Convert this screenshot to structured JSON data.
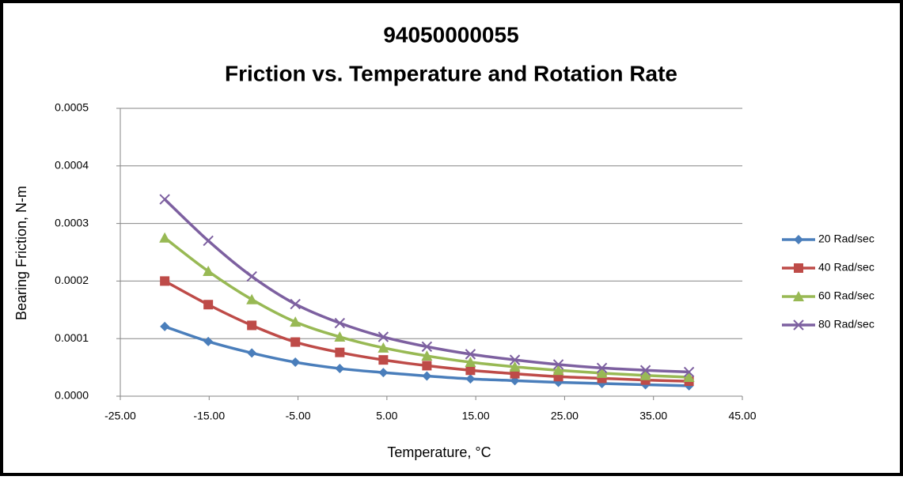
{
  "chart_data": {
    "type": "line",
    "title": "94050000055",
    "subtitle": "Friction vs. Temperature and Rotation Rate",
    "xlabel": "Temperature, °C",
    "ylabel": "Bearing Friction, N-m",
    "x": [
      -20,
      -15.1,
      -10.2,
      -5.3,
      -0.3,
      4.6,
      9.5,
      14.4,
      19.4,
      24.3,
      29.2,
      34.1,
      39.0
    ],
    "series": [
      {
        "name": "20 Rad/sec",
        "color": "#4a7ebb",
        "marker": "diamond",
        "values": [
          0.000121,
          9.5e-05,
          7.5e-05,
          5.9e-05,
          4.8e-05,
          4.1e-05,
          3.5e-05,
          3e-05,
          2.7e-05,
          2.4e-05,
          2.2e-05,
          2e-05,
          1.8e-05
        ]
      },
      {
        "name": "40 Rad/sec",
        "color": "#be4b48",
        "marker": "square",
        "values": [
          0.0002,
          0.000159,
          0.000123,
          9.4e-05,
          7.6e-05,
          6.3e-05,
          5.3e-05,
          4.5e-05,
          3.9e-05,
          3.4e-05,
          3.1e-05,
          2.8e-05,
          2.6e-05
        ]
      },
      {
        "name": "60 Rad/sec",
        "color": "#98b954",
        "marker": "triangle",
        "values": [
          0.000275,
          0.000217,
          0.000168,
          0.000129,
          0.000103,
          8.4e-05,
          7e-05,
          5.9e-05,
          5.1e-05,
          4.5e-05,
          4e-05,
          3.6e-05,
          3.3e-05
        ]
      },
      {
        "name": "80 Rad/sec",
        "color": "#7d60a0",
        "marker": "x",
        "values": [
          0.000342,
          0.00027,
          0.000208,
          0.00016,
          0.000127,
          0.000103,
          8.6e-05,
          7.3e-05,
          6.3e-05,
          5.5e-05,
          4.9e-05,
          4.5e-05,
          4.2e-05
        ]
      }
    ],
    "xlim": [
      -25,
      45
    ],
    "xticks": [
      {
        "value": -25,
        "label": "-25.00"
      },
      {
        "value": -15,
        "label": "-15.00"
      },
      {
        "value": -5,
        "label": "-5.00"
      },
      {
        "value": 5,
        "label": "5.00"
      },
      {
        "value": 15,
        "label": "15.00"
      },
      {
        "value": 25,
        "label": "25.00"
      },
      {
        "value": 35,
        "label": "35.00"
      },
      {
        "value": 45,
        "label": "45.00"
      }
    ],
    "ylim": [
      0,
      0.0005
    ],
    "yticks": [
      {
        "value": 0,
        "label": "0.0000"
      },
      {
        "value": 0.0001,
        "label": "0.0001"
      },
      {
        "value": 0.0002,
        "label": "0.0002"
      },
      {
        "value": 0.0003,
        "label": "0.0003"
      },
      {
        "value": 0.0004,
        "label": "0.0004"
      },
      {
        "value": 0.0005,
        "label": "0.0005"
      }
    ],
    "grid": true,
    "legend": "right"
  }
}
